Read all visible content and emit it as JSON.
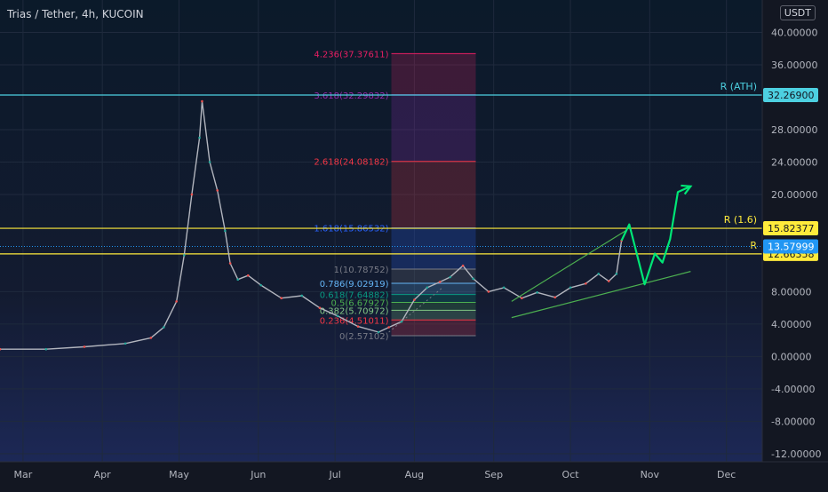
{
  "chart_data": {
    "type": "line",
    "title": "Trias / Tether, 4h, KUCOIN",
    "currency": "USDT",
    "y_ticks": [
      "40.00000",
      "36.00000",
      "28.00000",
      "24.00000",
      "20.00000",
      "8.00000",
      "4.00000",
      "0.00000",
      "-4.00000",
      "-8.00000",
      "-12.00000"
    ],
    "ylim": [
      -13,
      44
    ],
    "x_ticks": [
      {
        "label": "Mar",
        "x": "2021-03-01"
      },
      {
        "label": "Apr",
        "x": "2021-04-01"
      },
      {
        "label": "May",
        "x": "2021-05-01"
      },
      {
        "label": "Jun",
        "x": "2021-06-01"
      },
      {
        "label": "Jul",
        "x": "2021-07-01"
      },
      {
        "label": "Aug",
        "x": "2021-08-01"
      },
      {
        "label": "Sep",
        "x": "2021-09-01"
      },
      {
        "label": "Oct",
        "x": "2021-10-01"
      },
      {
        "label": "Nov",
        "x": "2021-11-01"
      },
      {
        "label": "Dec",
        "x": "2021-12-01"
      }
    ],
    "xlim": [
      "2021-02-20",
      "2021-12-15"
    ],
    "price": {
      "x": [
        "2021-02-20",
        "2021-03-10",
        "2021-03-25",
        "2021-04-10",
        "2021-04-20",
        "2021-04-25",
        "2021-04-30",
        "2021-05-03",
        "2021-05-06",
        "2021-05-09",
        "2021-05-10",
        "2021-05-13",
        "2021-05-16",
        "2021-05-19",
        "2021-05-21",
        "2021-05-24",
        "2021-05-28",
        "2021-06-02",
        "2021-06-10",
        "2021-06-18",
        "2021-06-25",
        "2021-07-02",
        "2021-07-10",
        "2021-07-18",
        "2021-07-22",
        "2021-07-27",
        "2021-08-01",
        "2021-08-06",
        "2021-08-11",
        "2021-08-15",
        "2021-08-20",
        "2021-08-24",
        "2021-08-30",
        "2021-09-05",
        "2021-09-12",
        "2021-09-18",
        "2021-09-25",
        "2021-10-01",
        "2021-10-07",
        "2021-10-12",
        "2021-10-16",
        "2021-10-19",
        "2021-10-21"
      ],
      "y": [
        0.9,
        0.9,
        1.2,
        1.6,
        2.3,
        3.6,
        6.8,
        12.5,
        20.0,
        27.0,
        31.5,
        24.0,
        20.5,
        15.5,
        11.5,
        9.5,
        10.0,
        8.8,
        7.2,
        7.5,
        6.0,
        5.0,
        3.7,
        3.0,
        3.6,
        4.3,
        7.0,
        8.5,
        9.2,
        9.8,
        11.2,
        9.6,
        8.0,
        8.5,
        7.2,
        7.9,
        7.3,
        8.5,
        9.0,
        10.2,
        9.3,
        10.2,
        14.3
      ]
    },
    "projection": {
      "name": "projection",
      "x": [
        "2021-10-21",
        "2021-10-24",
        "2021-10-30",
        "2021-11-03",
        "2021-11-06",
        "2021-11-09",
        "2021-11-12",
        "2021-11-17"
      ],
      "y": [
        14.3,
        16.3,
        8.9,
        12.7,
        11.6,
        14.5,
        20.3,
        21.0
      ]
    },
    "wedge_upper": {
      "x": [
        "2021-09-08",
        "2021-10-23"
      ],
      "y": [
        6.8,
        15.6
      ]
    },
    "wedge_lower": {
      "x": [
        "2021-09-08",
        "2021-11-17"
      ],
      "y": [
        4.8,
        10.5
      ]
    },
    "dotted_line": {
      "x": [
        "2021-07-22",
        "2021-08-12"
      ],
      "y": [
        3.0,
        8.5
      ]
    },
    "fib": {
      "x_range": [
        "2021-07-23",
        "2021-08-25"
      ],
      "levels": [
        {
          "label": "0(2.57102)",
          "value": 2.57102,
          "color": "#787b86"
        },
        {
          "label": "0.236(4.51011)",
          "value": 4.51011,
          "color": "#f23645"
        },
        {
          "label": "0.382(5.70972)",
          "value": 5.70972,
          "color": "#81c784"
        },
        {
          "label": "0.5(6.67927)",
          "value": 6.67927,
          "color": "#4caf50"
        },
        {
          "label": "0.618(7.64882)",
          "value": 7.64882,
          "color": "#089981"
        },
        {
          "label": "0.786(9.02919)",
          "value": 9.02919,
          "color": "#64b5f6"
        },
        {
          "label": "1(10.78752)",
          "value": 10.78752,
          "color": "#787b86"
        },
        {
          "label": "1.618(15.86532)",
          "value": 15.86532,
          "color": "#2962ff"
        },
        {
          "label": "2.618(24.08182)",
          "value": 24.08182,
          "color": "#f23645"
        },
        {
          "label": "3.618(32.29832)",
          "value": 32.29832,
          "color": "#9c27b0"
        },
        {
          "label": "4.236(37.37611)",
          "value": 37.37611,
          "color": "#e91e63"
        }
      ]
    },
    "hlines": [
      {
        "label": "R (ATH)",
        "value": 32.269,
        "badge": "32.26900",
        "color": "#4dd0e1",
        "badge_bg": "#4dd0e1",
        "badge_fg": "#131722"
      },
      {
        "label": "R (1.6)",
        "value": 15.82377,
        "badge": "15.82377",
        "color": "#ffeb3b",
        "badge_bg": "#ffeb3b",
        "badge_fg": "#131722"
      },
      {
        "label": "R",
        "value": 12.66358,
        "badge": "12.66358",
        "color": "#ffeb3b",
        "badge_bg": "#ffeb3b",
        "badge_fg": "#131722"
      }
    ],
    "last_price": {
      "value": 13.57999,
      "badge": "13.57999",
      "color": "#2196f3"
    }
  }
}
